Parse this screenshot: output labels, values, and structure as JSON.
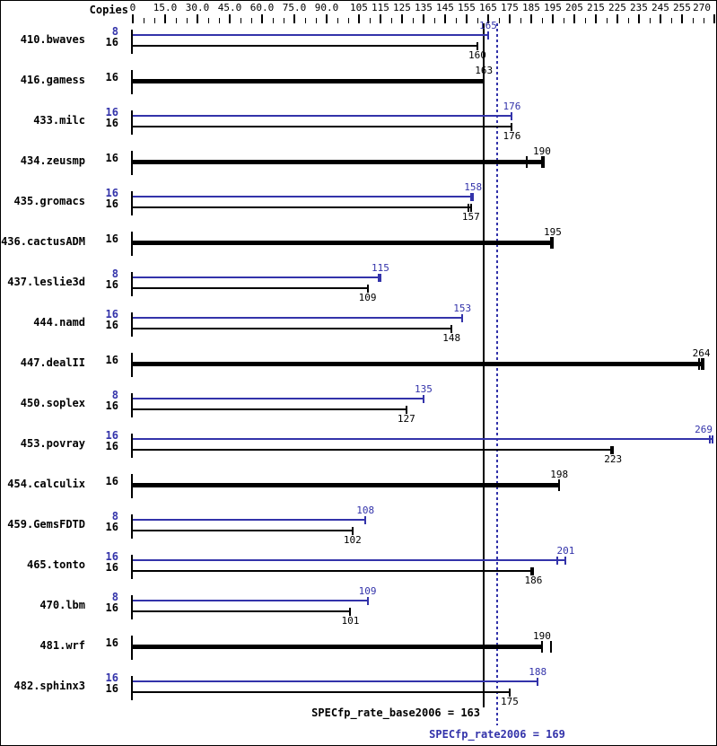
{
  "header": {
    "copies_label": "Copies"
  },
  "colors": {
    "peak": "#3333aa",
    "base": "#000000",
    "background": "#ffffff",
    "border": "#000000"
  },
  "summary": {
    "base_text": "SPECfp_rate_base2006 = 163",
    "base_value": 163,
    "peak_text": "SPECfp_rate2006 = 169",
    "peak_value": 169
  },
  "chart_data": {
    "type": "bar",
    "orientation": "horizontal",
    "title": "",
    "xlabel": "Copies",
    "ylabel": "",
    "value_axis": {
      "min": 0,
      "max": 270,
      "tick_step": 5,
      "labeled_ticks": [
        {
          "value": 0,
          "label": "0"
        },
        {
          "value": 15,
          "label": "15.0"
        },
        {
          "value": 30,
          "label": "30.0"
        },
        {
          "value": 45,
          "label": "45.0"
        },
        {
          "value": 60,
          "label": "60.0"
        },
        {
          "value": 75,
          "label": "75.0"
        },
        {
          "value": 90,
          "label": "90.0"
        },
        {
          "value": 105,
          "label": "105"
        },
        {
          "value": 115,
          "label": "115"
        },
        {
          "value": 125,
          "label": "125"
        },
        {
          "value": 135,
          "label": "135"
        },
        {
          "value": 145,
          "label": "145"
        },
        {
          "value": 155,
          "label": "155"
        },
        {
          "value": 165,
          "label": "165"
        },
        {
          "value": 175,
          "label": "175"
        },
        {
          "value": 185,
          "label": "185"
        },
        {
          "value": 195,
          "label": "195"
        },
        {
          "value": 205,
          "label": "205"
        },
        {
          "value": 215,
          "label": "215"
        },
        {
          "value": 225,
          "label": "225"
        },
        {
          "value": 235,
          "label": "235"
        },
        {
          "value": 245,
          "label": "245"
        },
        {
          "value": 255,
          "label": "255"
        },
        {
          "value": 270,
          "label": "270"
        }
      ]
    },
    "reference_lines": [
      {
        "name": "base",
        "value": 163,
        "style": "solid",
        "color": "#000000"
      },
      {
        "name": "peak",
        "value": 169,
        "style": "dotted",
        "color": "#3333aa"
      }
    ],
    "benchmarks": [
      {
        "name": "410.bwaves",
        "bars": [
          {
            "copies": 8,
            "role": "peak",
            "value": 165,
            "thick": false,
            "marks": [
              165
            ]
          },
          {
            "copies": 16,
            "role": "base",
            "value": 160,
            "thick": false,
            "marks": [
              160
            ]
          }
        ]
      },
      {
        "name": "416.gamess",
        "bars": [
          {
            "copies": 16,
            "role": "base",
            "value": 163,
            "thick": true,
            "marks": [
              163
            ]
          }
        ]
      },
      {
        "name": "433.milc",
        "bars": [
          {
            "copies": 16,
            "role": "peak",
            "value": 176,
            "thick": false,
            "marks": [
              176
            ]
          },
          {
            "copies": 16,
            "role": "base",
            "value": 176,
            "thick": false,
            "marks": [
              176
            ]
          }
        ]
      },
      {
        "name": "434.zeusmp",
        "bars": [
          {
            "copies": 16,
            "role": "base",
            "value": 190,
            "thick": true,
            "marks": [
              183,
              190,
              191
            ]
          }
        ]
      },
      {
        "name": "435.gromacs",
        "bars": [
          {
            "copies": 16,
            "role": "peak",
            "value": 158,
            "thick": false,
            "marks": [
              157,
              158
            ]
          },
          {
            "copies": 16,
            "role": "base",
            "value": 157,
            "thick": false,
            "marks": [
              156,
              157
            ]
          }
        ]
      },
      {
        "name": "436.cactusADM",
        "bars": [
          {
            "copies": 16,
            "role": "base",
            "value": 195,
            "thick": true,
            "marks": [
              194,
              195
            ]
          }
        ]
      },
      {
        "name": "437.leslie3d",
        "bars": [
          {
            "copies": 8,
            "role": "peak",
            "value": 115,
            "thick": false,
            "marks": [
              114,
              115
            ]
          },
          {
            "copies": 16,
            "role": "base",
            "value": 109,
            "thick": false,
            "marks": [
              109
            ]
          }
        ]
      },
      {
        "name": "444.namd",
        "bars": [
          {
            "copies": 16,
            "role": "peak",
            "value": 153,
            "thick": false,
            "marks": [
              153
            ]
          },
          {
            "copies": 16,
            "role": "base",
            "value": 148,
            "thick": false,
            "marks": [
              148
            ]
          }
        ]
      },
      {
        "name": "447.dealII",
        "bars": [
          {
            "copies": 16,
            "role": "base",
            "value": 264,
            "thick": true,
            "marks": [
              263,
              264,
              265
            ]
          }
        ]
      },
      {
        "name": "450.soplex",
        "bars": [
          {
            "copies": 8,
            "role": "peak",
            "value": 135,
            "thick": false,
            "marks": [
              135
            ]
          },
          {
            "copies": 16,
            "role": "base",
            "value": 127,
            "thick": false,
            "marks": [
              127
            ]
          }
        ]
      },
      {
        "name": "453.povray",
        "bars": [
          {
            "copies": 16,
            "role": "peak",
            "value": 269,
            "thick": false,
            "marks": [
              268,
              269
            ]
          },
          {
            "copies": 16,
            "role": "base",
            "value": 223,
            "thick": false,
            "marks": [
              222,
              223
            ]
          }
        ]
      },
      {
        "name": "454.calculix",
        "bars": [
          {
            "copies": 16,
            "role": "base",
            "value": 198,
            "thick": true,
            "marks": [
              198
            ]
          }
        ]
      },
      {
        "name": "459.GemsFDTD",
        "bars": [
          {
            "copies": 8,
            "role": "peak",
            "value": 108,
            "thick": false,
            "marks": [
              108
            ]
          },
          {
            "copies": 16,
            "role": "base",
            "value": 102,
            "thick": false,
            "marks": [
              102
            ]
          }
        ]
      },
      {
        "name": "465.tonto",
        "bars": [
          {
            "copies": 16,
            "role": "peak",
            "value": 201,
            "thick": false,
            "marks": [
              197,
              201
            ]
          },
          {
            "copies": 16,
            "role": "base",
            "value": 186,
            "thick": false,
            "marks": [
              185,
              186
            ]
          }
        ]
      },
      {
        "name": "470.lbm",
        "bars": [
          {
            "copies": 8,
            "role": "peak",
            "value": 109,
            "thick": false,
            "marks": [
              109
            ]
          },
          {
            "copies": 16,
            "role": "base",
            "value": 101,
            "thick": false,
            "marks": [
              101
            ]
          }
        ]
      },
      {
        "name": "481.wrf",
        "bars": [
          {
            "copies": 16,
            "role": "base",
            "value": 190,
            "thick": true,
            "marks": [
              190,
              194
            ]
          }
        ]
      },
      {
        "name": "482.sphinx3",
        "bars": [
          {
            "copies": 16,
            "role": "peak",
            "value": 188,
            "thick": false,
            "marks": [
              188
            ]
          },
          {
            "copies": 16,
            "role": "base",
            "value": 175,
            "thick": false,
            "marks": [
              175
            ]
          }
        ]
      }
    ]
  }
}
